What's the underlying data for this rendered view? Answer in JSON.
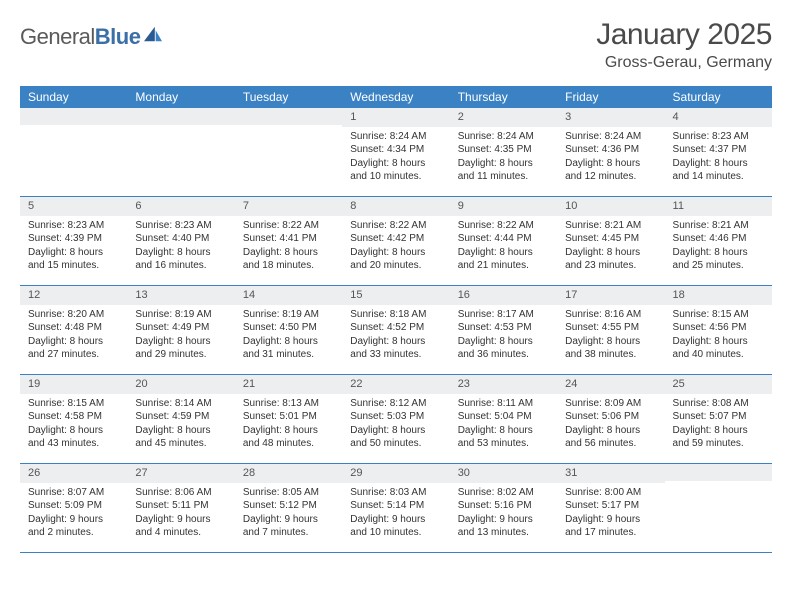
{
  "logo": {
    "text1": "General",
    "text2": "Blue"
  },
  "title": "January 2025",
  "location": "Gross-Gerau, Germany",
  "day_headers": [
    "Sunday",
    "Monday",
    "Tuesday",
    "Wednesday",
    "Thursday",
    "Friday",
    "Saturday"
  ],
  "colors": {
    "header_bg": "#3b82c4",
    "header_text": "#ffffff",
    "daynum_bg": "#eceef0",
    "border": "#3b82c4",
    "text": "#333333"
  },
  "weeks": [
    [
      {
        "n": "",
        "sr": "",
        "ss": "",
        "dh": "",
        "dm": ""
      },
      {
        "n": "",
        "sr": "",
        "ss": "",
        "dh": "",
        "dm": ""
      },
      {
        "n": "",
        "sr": "",
        "ss": "",
        "dh": "",
        "dm": ""
      },
      {
        "n": "1",
        "sr": "8:24 AM",
        "ss": "4:34 PM",
        "dh": "8",
        "dm": "10"
      },
      {
        "n": "2",
        "sr": "8:24 AM",
        "ss": "4:35 PM",
        "dh": "8",
        "dm": "11"
      },
      {
        "n": "3",
        "sr": "8:24 AM",
        "ss": "4:36 PM",
        "dh": "8",
        "dm": "12"
      },
      {
        "n": "4",
        "sr": "8:23 AM",
        "ss": "4:37 PM",
        "dh": "8",
        "dm": "14"
      }
    ],
    [
      {
        "n": "5",
        "sr": "8:23 AM",
        "ss": "4:39 PM",
        "dh": "8",
        "dm": "15"
      },
      {
        "n": "6",
        "sr": "8:23 AM",
        "ss": "4:40 PM",
        "dh": "8",
        "dm": "16"
      },
      {
        "n": "7",
        "sr": "8:22 AM",
        "ss": "4:41 PM",
        "dh": "8",
        "dm": "18"
      },
      {
        "n": "8",
        "sr": "8:22 AM",
        "ss": "4:42 PM",
        "dh": "8",
        "dm": "20"
      },
      {
        "n": "9",
        "sr": "8:22 AM",
        "ss": "4:44 PM",
        "dh": "8",
        "dm": "21"
      },
      {
        "n": "10",
        "sr": "8:21 AM",
        "ss": "4:45 PM",
        "dh": "8",
        "dm": "23"
      },
      {
        "n": "11",
        "sr": "8:21 AM",
        "ss": "4:46 PM",
        "dh": "8",
        "dm": "25"
      }
    ],
    [
      {
        "n": "12",
        "sr": "8:20 AM",
        "ss": "4:48 PM",
        "dh": "8",
        "dm": "27"
      },
      {
        "n": "13",
        "sr": "8:19 AM",
        "ss": "4:49 PM",
        "dh": "8",
        "dm": "29"
      },
      {
        "n": "14",
        "sr": "8:19 AM",
        "ss": "4:50 PM",
        "dh": "8",
        "dm": "31"
      },
      {
        "n": "15",
        "sr": "8:18 AM",
        "ss": "4:52 PM",
        "dh": "8",
        "dm": "33"
      },
      {
        "n": "16",
        "sr": "8:17 AM",
        "ss": "4:53 PM",
        "dh": "8",
        "dm": "36"
      },
      {
        "n": "17",
        "sr": "8:16 AM",
        "ss": "4:55 PM",
        "dh": "8",
        "dm": "38"
      },
      {
        "n": "18",
        "sr": "8:15 AM",
        "ss": "4:56 PM",
        "dh": "8",
        "dm": "40"
      }
    ],
    [
      {
        "n": "19",
        "sr": "8:15 AM",
        "ss": "4:58 PM",
        "dh": "8",
        "dm": "43"
      },
      {
        "n": "20",
        "sr": "8:14 AM",
        "ss": "4:59 PM",
        "dh": "8",
        "dm": "45"
      },
      {
        "n": "21",
        "sr": "8:13 AM",
        "ss": "5:01 PM",
        "dh": "8",
        "dm": "48"
      },
      {
        "n": "22",
        "sr": "8:12 AM",
        "ss": "5:03 PM",
        "dh": "8",
        "dm": "50"
      },
      {
        "n": "23",
        "sr": "8:11 AM",
        "ss": "5:04 PM",
        "dh": "8",
        "dm": "53"
      },
      {
        "n": "24",
        "sr": "8:09 AM",
        "ss": "5:06 PM",
        "dh": "8",
        "dm": "56"
      },
      {
        "n": "25",
        "sr": "8:08 AM",
        "ss": "5:07 PM",
        "dh": "8",
        "dm": "59"
      }
    ],
    [
      {
        "n": "26",
        "sr": "8:07 AM",
        "ss": "5:09 PM",
        "dh": "9",
        "dm": "2"
      },
      {
        "n": "27",
        "sr": "8:06 AM",
        "ss": "5:11 PM",
        "dh": "9",
        "dm": "4"
      },
      {
        "n": "28",
        "sr": "8:05 AM",
        "ss": "5:12 PM",
        "dh": "9",
        "dm": "7"
      },
      {
        "n": "29",
        "sr": "8:03 AM",
        "ss": "5:14 PM",
        "dh": "9",
        "dm": "10"
      },
      {
        "n": "30",
        "sr": "8:02 AM",
        "ss": "5:16 PM",
        "dh": "9",
        "dm": "13"
      },
      {
        "n": "31",
        "sr": "8:00 AM",
        "ss": "5:17 PM",
        "dh": "9",
        "dm": "17"
      },
      {
        "n": "",
        "sr": "",
        "ss": "",
        "dh": "",
        "dm": ""
      }
    ]
  ]
}
